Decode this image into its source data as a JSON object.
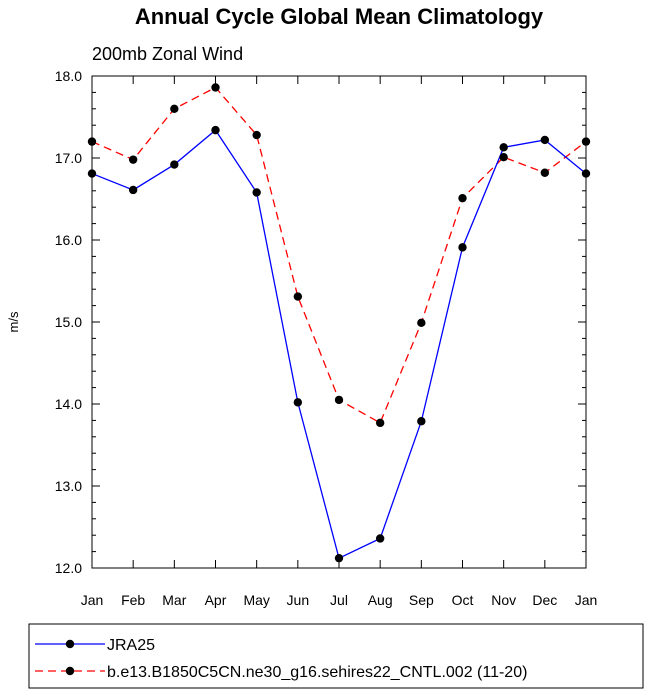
{
  "chart_data": {
    "type": "line",
    "title": "Annual Cycle Global Mean Climatology",
    "subtitle": "200mb Zonal Wind",
    "ylabel": "m/s",
    "xlabel": "",
    "ylim": [
      12.0,
      18.0
    ],
    "yticks": [
      "12.0",
      "13.0",
      "14.0",
      "15.0",
      "16.0",
      "17.0",
      "18.0"
    ],
    "categories": [
      "Jan",
      "Feb",
      "Mar",
      "Apr",
      "May",
      "Jun",
      "Jul",
      "Aug",
      "Sep",
      "Oct",
      "Nov",
      "Dec",
      "Jan"
    ],
    "series": [
      {
        "name": "JRA25",
        "color": "#0000ff",
        "dash": "solid",
        "values": [
          16.81,
          16.61,
          16.92,
          17.34,
          16.58,
          14.02,
          12.12,
          12.36,
          13.79,
          15.91,
          17.13,
          17.22,
          16.81
        ]
      },
      {
        "name": "b.e13.B1850C5CN.ne30_g16.sehires22_CNTL.002 (11-20)",
        "color": "#ff0000",
        "dash": "dashed",
        "values": [
          17.2,
          16.98,
          17.6,
          17.86,
          17.28,
          15.31,
          14.05,
          13.77,
          14.99,
          16.51,
          17.01,
          16.82,
          17.2
        ]
      }
    ],
    "grid": false,
    "legend_position": "bottom"
  }
}
